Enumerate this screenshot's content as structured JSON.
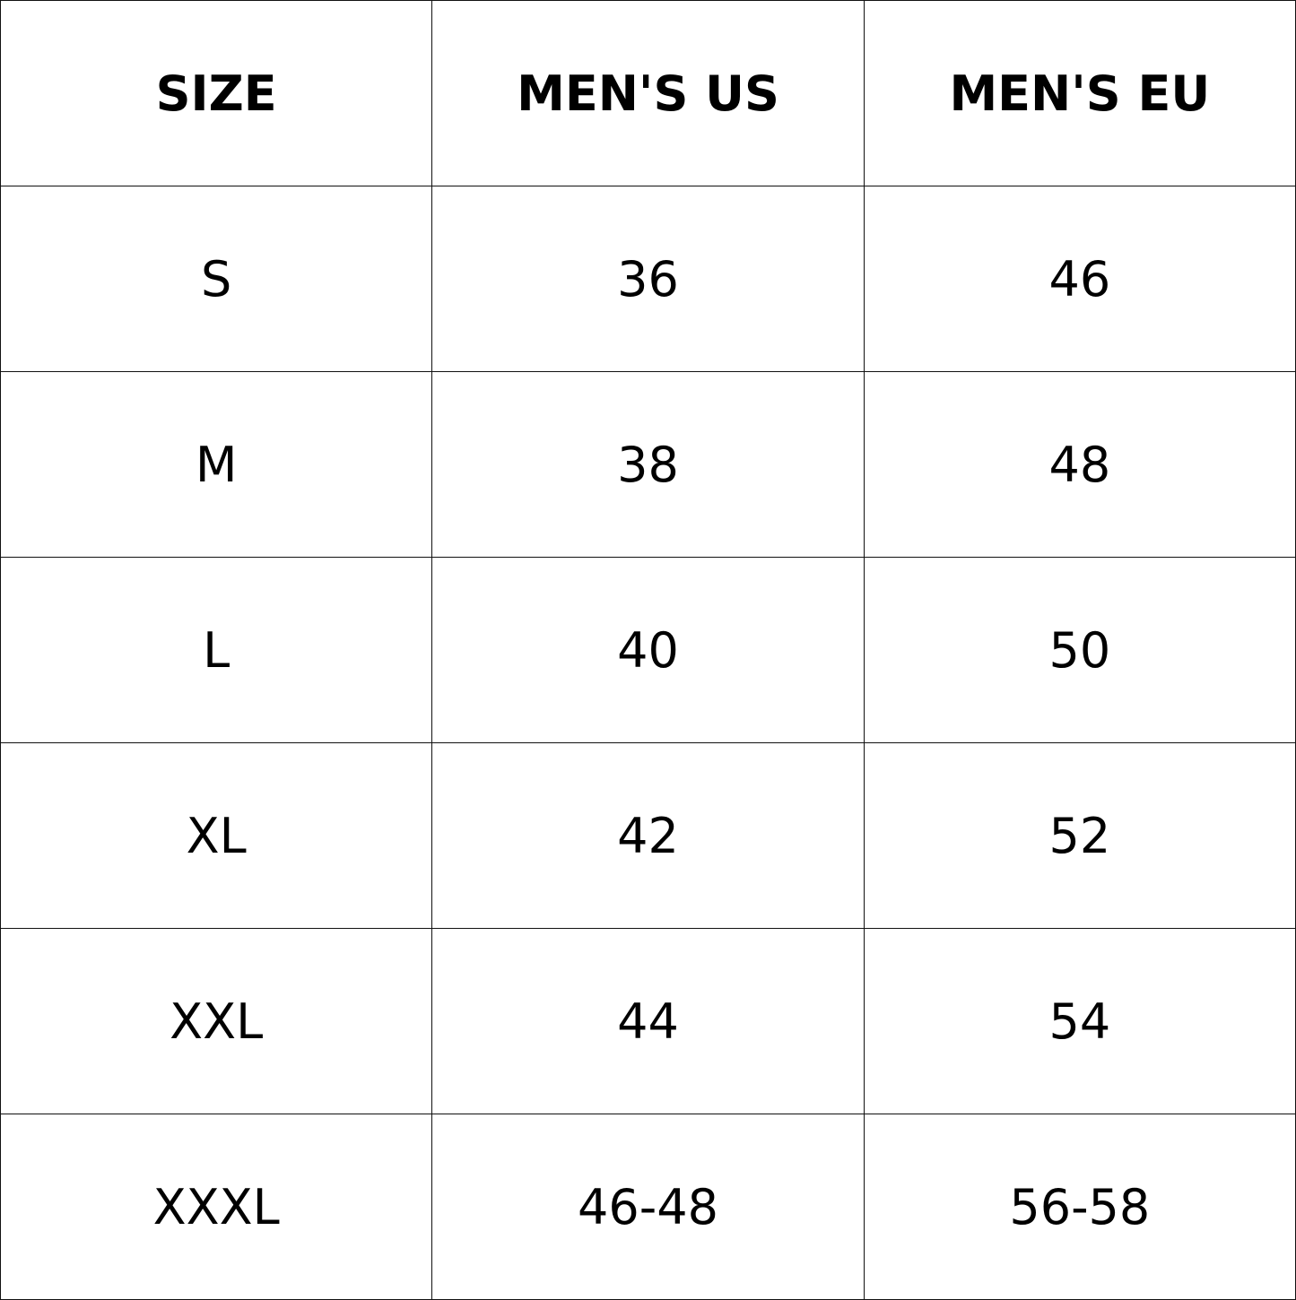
{
  "table": {
    "header": [
      "SIZE",
      "MEN'S US",
      "MEN'S EU"
    ],
    "rows": [
      [
        "S",
        "36",
        "46"
      ],
      [
        "M",
        "38",
        "48"
      ],
      [
        "L",
        "40",
        "50"
      ],
      [
        "XL",
        "42",
        "52"
      ],
      [
        "XXL",
        "44",
        "54"
      ],
      [
        "XXXL",
        "46-48",
        "56-58"
      ]
    ]
  }
}
